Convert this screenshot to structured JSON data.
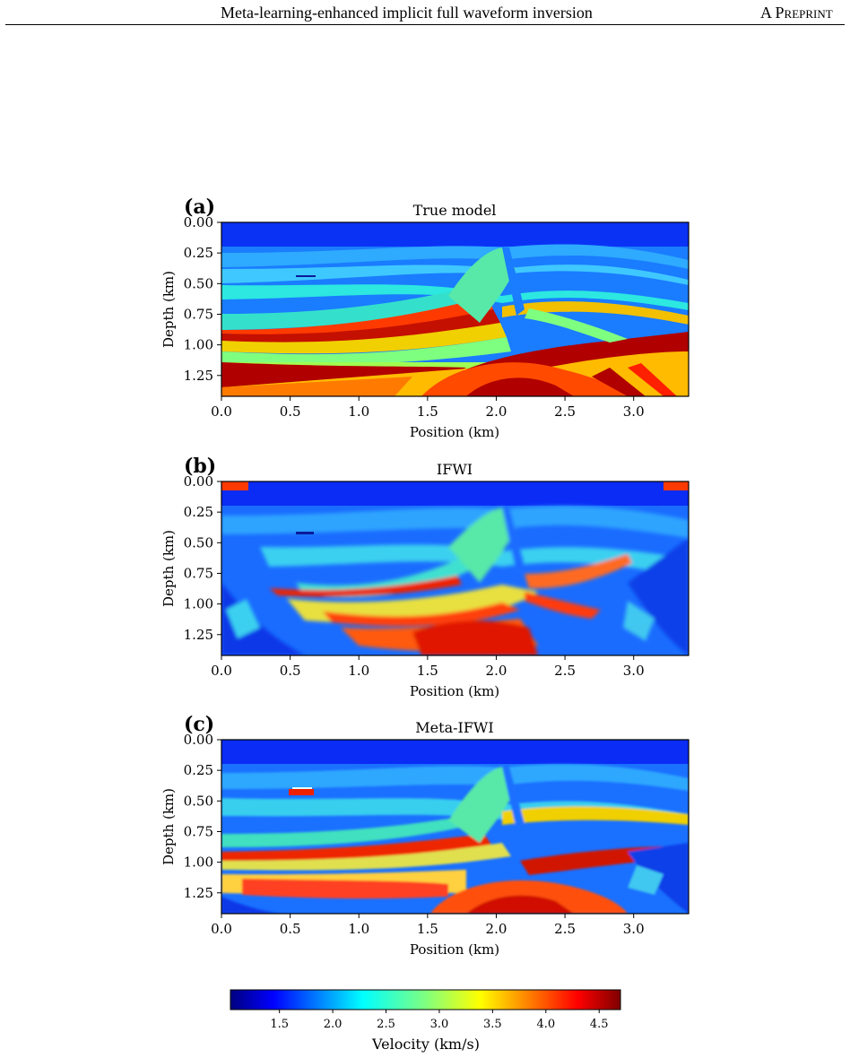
{
  "header": {
    "title": "Meta-learning-enhanced implicit full waveform inversion",
    "tag": "A Preprint"
  },
  "panels": [
    {
      "letter": "(a)",
      "title": "True model",
      "variant": "true"
    },
    {
      "letter": "(b)",
      "title": "IFWI",
      "variant": "ifwi"
    },
    {
      "letter": "(c)",
      "title": "Meta-IFWI",
      "variant": "meta"
    }
  ],
  "chart_data": {
    "type": "heatmap",
    "xlabel": "Position (km)",
    "ylabel": "Depth (km)",
    "x_ticks": [
      "0.0",
      "0.5",
      "1.0",
      "1.5",
      "2.0",
      "2.5",
      "3.0"
    ],
    "y_ticks": [
      "0.00",
      "0.25",
      "0.50",
      "0.75",
      "1.00",
      "1.25"
    ],
    "xlim": [
      0,
      3.4
    ],
    "ylim": [
      0,
      1.42
    ],
    "colorbar": {
      "label": "Velocity (km/s)",
      "ticks": [
        "1.5",
        "2.0",
        "2.5",
        "3.0",
        "3.5",
        "4.0",
        "4.5"
      ],
      "range": [
        1.04,
        4.7
      ],
      "colormap": "jet"
    }
  }
}
